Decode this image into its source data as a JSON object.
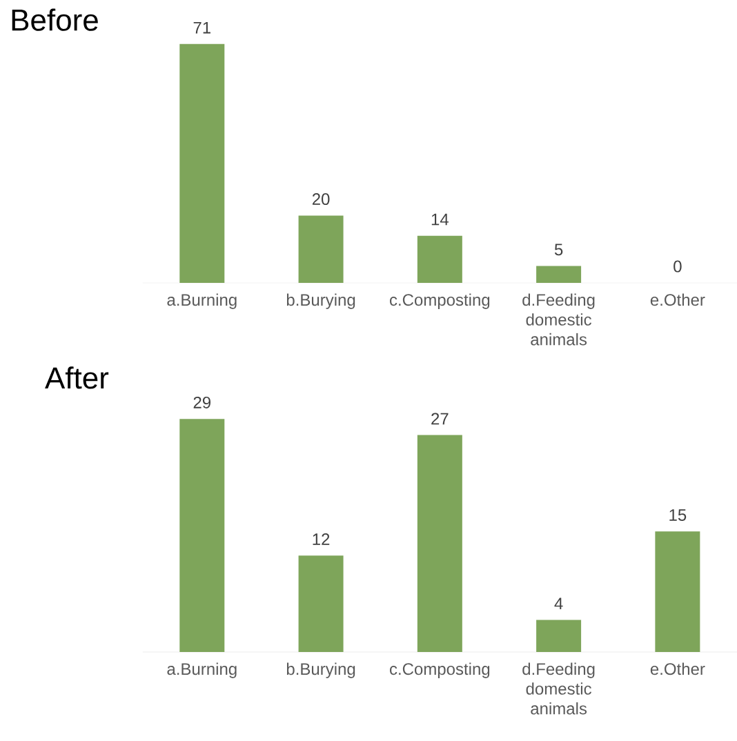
{
  "chart_data": [
    {
      "type": "bar",
      "title": "Before",
      "categories": [
        "a.Burning",
        "b.Burying",
        "c.Composting",
        "d.Feeding domestic animals",
        "e.Other"
      ],
      "values": [
        71,
        20,
        14,
        5,
        0
      ],
      "color": "#7ea55a",
      "data_labels": true
    },
    {
      "type": "bar",
      "title": "After",
      "categories": [
        "a.Burning",
        "b.Burying",
        "c.Composting",
        "d.Feeding domestic animals",
        "e.Other"
      ],
      "values": [
        29,
        12,
        27,
        4,
        15
      ],
      "color": "#7ea55a",
      "data_labels": true
    }
  ]
}
